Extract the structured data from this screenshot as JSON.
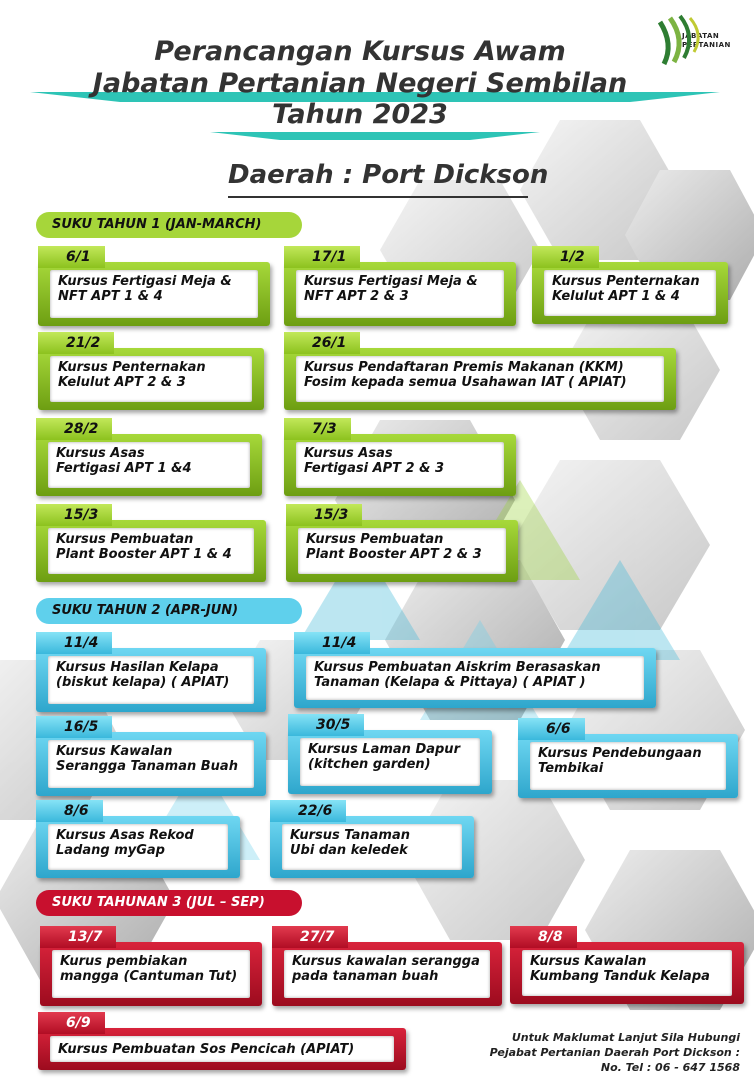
{
  "header": {
    "title_line1": "Perancangan Kursus Awam",
    "title_line2": "Jabatan Pertanian Negeri Sembilan",
    "title_line3": "Tahun 2023",
    "district": "Daerah : Port Dickson",
    "logo_text_line1": "JABATAN",
    "logo_text_line2": "PERTANIAN"
  },
  "colors": {
    "quarter1": "#a6d63a",
    "quarter2": "#5fd0ec",
    "quarter3": "#c8102e",
    "swoosh": "#2ec4b6"
  },
  "quarters": [
    {
      "heading": "SUKU TAHUN 1 (JAN-MARCH)",
      "courses": [
        {
          "date": "6/1",
          "line1": "Kursus Fertigasi Meja &",
          "line2": "NFT  APT 1 & 4"
        },
        {
          "date": "17/1",
          "line1": "Kursus Fertigasi Meja &",
          "line2": "NFT  APT 2 & 3"
        },
        {
          "date": "1/2",
          "line1": "Kursus Penternakan",
          "line2": "Kelulut  APT 1 & 4"
        },
        {
          "date": "21/2",
          "line1": "Kursus Penternakan",
          "line2": "Kelulut  APT 2 & 3"
        },
        {
          "date": "26/1",
          "line1": "Kursus Pendaftaran Premis Makanan (KKM)",
          "line2": "Fosim kepada semua Usahawan IAT ( APIAT)"
        },
        {
          "date": "28/2",
          "line1": "Kursus Asas",
          "line2": "Fertigasi APT 1 &4"
        },
        {
          "date": "7/3",
          "line1": "Kursus Asas",
          "line2": "Fertigasi APT 2 & 3"
        },
        {
          "date": "15/3",
          "line1": "Kursus Pembuatan",
          "line2": "Plant Booster APT 1 & 4"
        },
        {
          "date": "15/3",
          "line1": "Kursus Pembuatan",
          "line2": "Plant Booster APT 2 & 3"
        }
      ]
    },
    {
      "heading": "SUKU TAHUN 2 (APR-JUN)",
      "courses": [
        {
          "date": "11/4",
          "line1": "Kursus Hasilan Kelapa",
          "line2": "(biskut kelapa) ( APIAT)"
        },
        {
          "date": "11/4",
          "line1": "Kursus Pembuatan Aiskrim Berasaskan",
          "line2": "Tanaman (Kelapa & Pittaya) ( APIAT )"
        },
        {
          "date": "16/5",
          "line1": "Kursus Kawalan",
          "line2": "Serangga Tanaman Buah"
        },
        {
          "date": "30/5",
          "line1": "Kursus Laman Dapur",
          "line2": "(kitchen garden)"
        },
        {
          "date": "6/6",
          "line1": "Kursus Pendebungaan",
          "line2": "Tembikai"
        },
        {
          "date": "8/6",
          "line1": "Kursus Asas Rekod",
          "line2": "Ladang myGap"
        },
        {
          "date": "22/6",
          "line1": "Kursus Tanaman",
          "line2": "Ubi dan keledek"
        }
      ]
    },
    {
      "heading": "SUKU TAHUNAN 3 (JUL – SEP)",
      "courses": [
        {
          "date": "13/7",
          "line1": "Kurus pembiakan",
          "line2": "mangga (Cantuman Tut)"
        },
        {
          "date": "27/7",
          "line1": "Kursus kawalan serangga",
          "line2": "pada tanaman buah"
        },
        {
          "date": "8/8",
          "line1": "Kursus Kawalan",
          "line2": "Kumbang Tanduk Kelapa"
        },
        {
          "date": "6/9",
          "line1": "Kursus Pembuatan Sos Pencicah (APIAT)",
          "line2": ""
        }
      ]
    }
  ],
  "contact": {
    "line1": "Untuk Maklumat Lanjut Sila Hubungi",
    "line2": "Pejabat Pertanian Daerah Port Dickson :",
    "line3": "No. Tel : 06 - 647 1568"
  }
}
